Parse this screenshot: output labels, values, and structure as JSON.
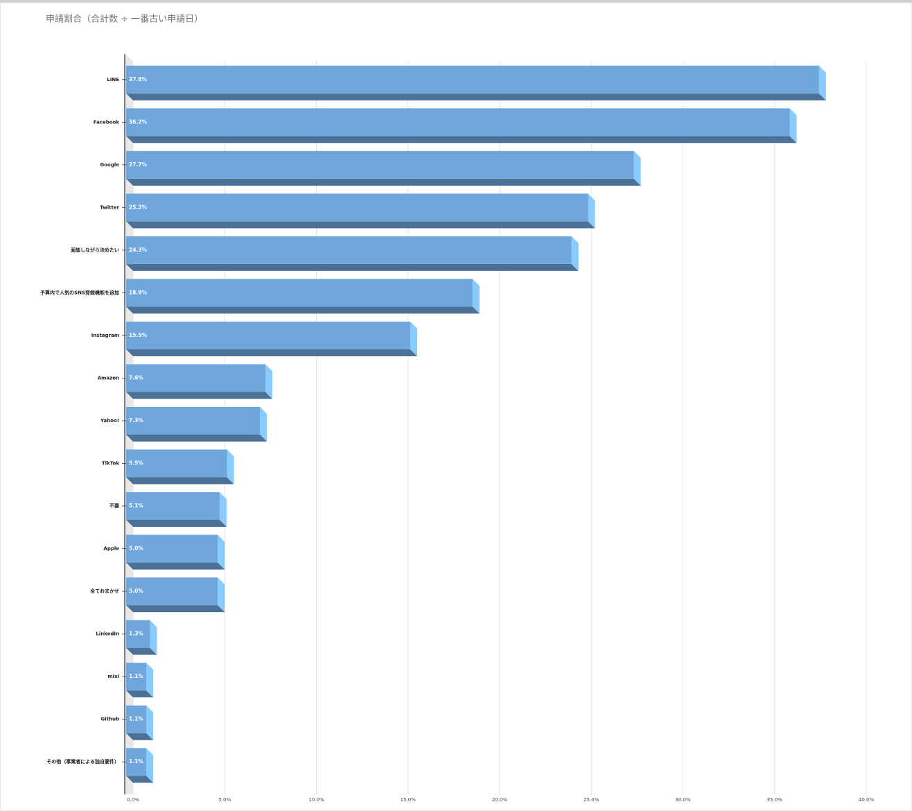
{
  "chart_data": {
    "type": "bar3d",
    "orientation": "horizontal",
    "title": "申請割合（合計数 ÷ 一番古い申請日）",
    "categories": [
      "LINE",
      "Facebook",
      "Google",
      "Twitter",
      "面談しながら決めたい",
      "予算内で人気のSNS登録機能を追加",
      "Instagram",
      "Amazon",
      "Yahoo!",
      "TikTok",
      "不要",
      "Apple",
      "全ておまかせ",
      "LinkedIn",
      "mixi",
      "Github",
      "その他（事業者による独自要件）"
    ],
    "values": [
      37.8,
      36.2,
      27.7,
      25.2,
      24.3,
      18.9,
      15.5,
      7.6,
      7.3,
      5.5,
      5.1,
      5.0,
      5.0,
      1.3,
      1.1,
      1.1,
      1.1
    ],
    "value_labels": [
      "37.8%",
      "36.2%",
      "27.7%",
      "25.2%",
      "24.3%",
      "18.9%",
      "15.5%",
      "7.6%",
      "7.3%",
      "5.5%",
      "5.1%",
      "5.0%",
      "5.0%",
      "1.3%",
      "1.1%",
      "1.1%",
      "1.1%"
    ],
    "color": "#6fa6dc",
    "xlim": [
      0,
      40
    ],
    "xticks": [
      {
        "value": 0,
        "label": "0.0%"
      },
      {
        "value": 5,
        "label": "5.0%"
      },
      {
        "value": 10,
        "label": "10.0%"
      },
      {
        "value": 15,
        "label": "15.0%"
      },
      {
        "value": 20,
        "label": "20.0%"
      },
      {
        "value": 25,
        "label": "25.0%"
      },
      {
        "value": 30,
        "label": "30.0%"
      },
      {
        "value": 35,
        "label": "35.0%"
      },
      {
        "value": 40,
        "label": "40.0%"
      }
    ],
    "grid": true
  }
}
